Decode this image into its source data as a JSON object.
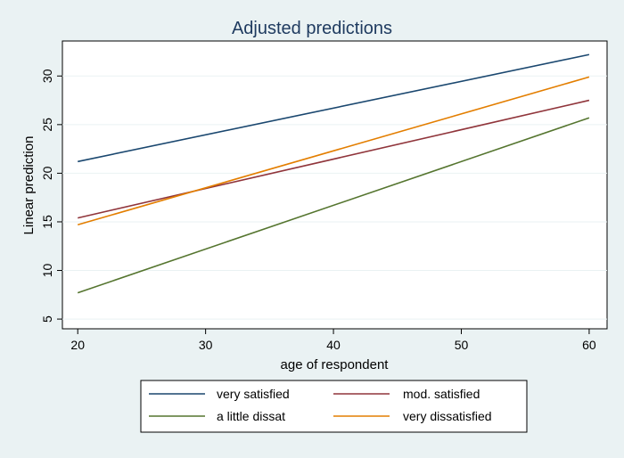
{
  "chart_data": {
    "type": "line",
    "title": "Adjusted predictions",
    "xlabel": "age of respondent",
    "ylabel": "Linear prediction",
    "xlim": [
      18.8,
      61.4
    ],
    "ylim": [
      4.0,
      33.6
    ],
    "xticks": [
      20,
      30,
      40,
      50,
      60
    ],
    "yticks": [
      5,
      10,
      15,
      20,
      25,
      30
    ],
    "grid": true,
    "legend_position": "bottom",
    "series": [
      {
        "name": "very satisfied",
        "color": "#1a476f",
        "x": [
          20,
          60
        ],
        "y": [
          21.2,
          32.2
        ]
      },
      {
        "name": "mod. satisfied",
        "color": "#90353b",
        "x": [
          20,
          60
        ],
        "y": [
          15.4,
          27.5
        ]
      },
      {
        "name": "a little dissat",
        "color": "#55752f",
        "x": [
          20,
          60
        ],
        "y": [
          7.7,
          25.7
        ]
      },
      {
        "name": "very dissatisfied",
        "color": "#e37e00",
        "x": [
          20,
          60
        ],
        "y": [
          14.7,
          29.9
        ]
      }
    ]
  }
}
